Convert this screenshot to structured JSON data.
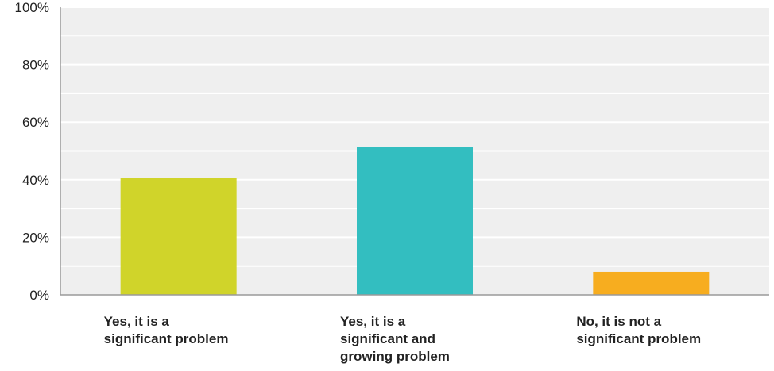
{
  "chart_data": {
    "type": "bar",
    "categories": [
      [
        "Yes, it is a",
        "significant problem"
      ],
      [
        "Yes, it is a",
        "significant and",
        "growing problem"
      ],
      [
        "No, it is not a",
        "significant problem"
      ]
    ],
    "values": [
      40.5,
      51.5,
      8
    ],
    "colors": [
      "#d0d42a",
      "#33bec0",
      "#f7ad1f"
    ],
    "ylim": [
      0,
      100
    ],
    "ytick_values": [
      0,
      20,
      40,
      60,
      80,
      100
    ],
    "ytick_labels": [
      "0%",
      "20%",
      "40%",
      "60%",
      "80%",
      "100%"
    ],
    "unit": "%",
    "grid": true,
    "background_color": "#efefef",
    "gridline_color": "#ffffff",
    "axis_color": "#9a9a9a",
    "title": "",
    "xlabel": "",
    "ylabel": ""
  }
}
